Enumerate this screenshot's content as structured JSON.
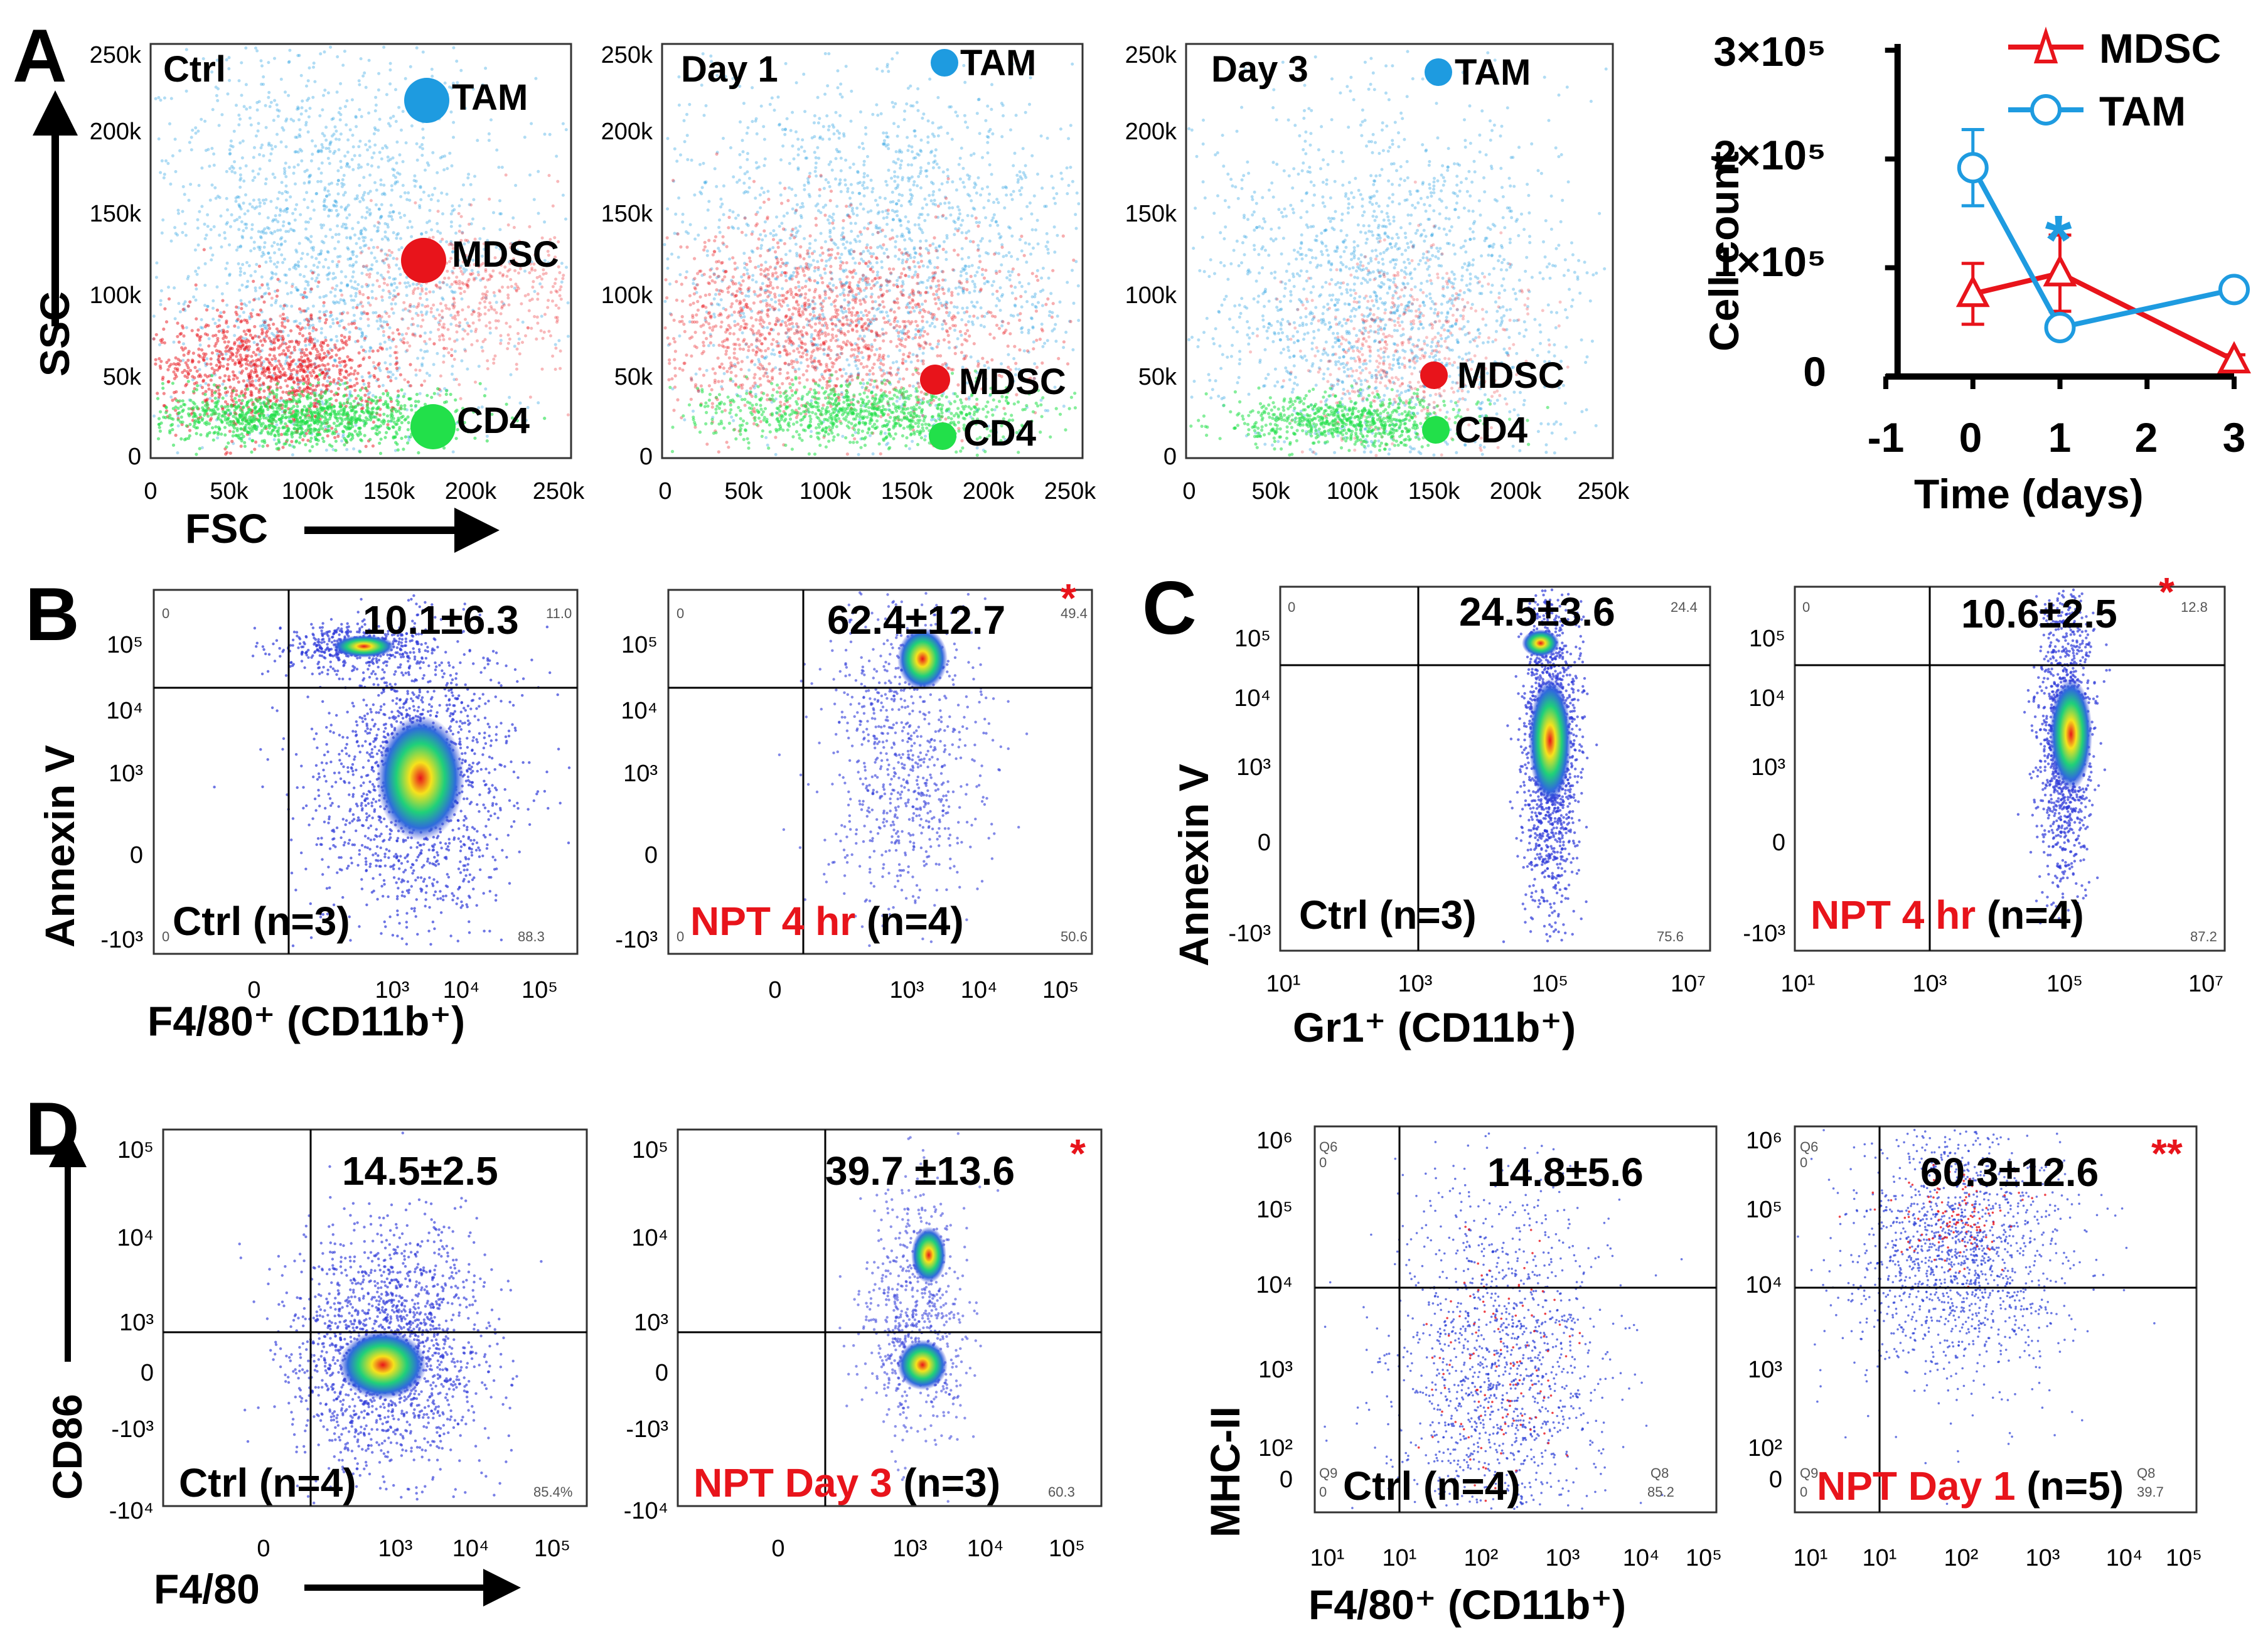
{
  "colors": {
    "mdsc": "#e8141b",
    "tam": "#1e9be0",
    "cd4": "#22e04a",
    "accent_red": "#e8141b"
  },
  "panels": [
    {
      "letter": "A"
    },
    {
      "letter": "B"
    },
    {
      "letter": "C"
    },
    {
      "letter": "D"
    }
  ],
  "panelA": {
    "x_title": "FSC",
    "y_title": "SSC",
    "x_ticks": [
      "0",
      "50k",
      "100k",
      "150k",
      "200k",
      "250k"
    ],
    "y_ticks": [
      "250k",
      "200k",
      "150k",
      "100k",
      "50k",
      "0"
    ],
    "plots": [
      {
        "title": "Ctrl",
        "gates": [
          "TAM",
          "MDSC",
          "CD4"
        ]
      },
      {
        "title": "Day 1",
        "gates": [
          "TAM",
          "MDSC",
          "CD4"
        ]
      },
      {
        "title": "Day 3",
        "gates": [
          "TAM",
          "MDSC",
          "CD4"
        ]
      }
    ]
  },
  "chart_data": {
    "type": "line",
    "title": "",
    "xlabel": "Time (days)",
    "ylabel": "Cell count",
    "xlim": [
      -1,
      3
    ],
    "ylim": [
      0,
      300000
    ],
    "x_ticks": [
      "-1",
      "0",
      "1",
      "2",
      "3"
    ],
    "y_ticks": [
      "0",
      "1×10⁵",
      "2×10⁵",
      "3×10⁵"
    ],
    "legend": "top-right",
    "series": [
      {
        "name": "MDSC",
        "x": [
          0,
          1,
          3
        ],
        "y": [
          76000,
          95000,
          15000
        ],
        "err": [
          28000,
          35000,
          5000
        ]
      },
      {
        "name": "TAM",
        "x": [
          0,
          1,
          3
        ],
        "y": [
          192000,
          45000,
          80000
        ],
        "err": [
          35000,
          6000,
          6000
        ]
      }
    ],
    "annotations": [
      {
        "text": "*",
        "x": 1
      }
    ]
  },
  "panelB": {
    "y_title": "Annexin V",
    "x_title": "F4/80⁺ (CD11b⁺)",
    "y_ticks": [
      "10⁵",
      "10⁴",
      "10³",
      "0",
      "-10³"
    ],
    "x_ticks": [
      "0",
      "10³",
      "10⁴",
      "10⁵"
    ],
    "ctrl": {
      "stat": "10.1±6.3",
      "group": "Ctrl",
      "n": "(n=3)",
      "q_upper_right": "11.0",
      "q_lower_right": "88.3",
      "q_upper_left": "0",
      "q_lower_left": "0"
    },
    "treated": {
      "stat": "62.4±12.7",
      "star": "*",
      "group": "NPT 4 hr",
      "n": "(n=4)",
      "q_upper_right": "49.4",
      "q_lower_right": "50.6",
      "q_upper_left": "0",
      "q_lower_left": "0"
    }
  },
  "panelC": {
    "y_title": "Annexin V",
    "x_title": "Gr1⁺ (CD11b⁺)",
    "y_ticks": [
      "10⁵",
      "10⁴",
      "10³",
      "0",
      "-10³"
    ],
    "x_ticks": [
      "10¹",
      "10³",
      "10⁵",
      "10⁷"
    ],
    "ctrl": {
      "stat": "24.5±3.6",
      "group": "Ctrl",
      "n": "(n=3)",
      "q_upper_right": "24.4",
      "q_lower_right": "75.6",
      "q_upper_left": "0"
    },
    "treated": {
      "stat": "10.6±2.5",
      "star": "*",
      "group": "NPT 4 hr",
      "n": "(n=4)",
      "q_upper_right": "12.8",
      "q_lower_right": "87.2",
      "q_upper_left": "0"
    }
  },
  "panelD1": {
    "y_title": "CD86",
    "x_title": "F4/80",
    "y_ticks": [
      "10⁵",
      "10⁴",
      "10³",
      "0",
      "-10³",
      "-10⁴"
    ],
    "x_ticks": [
      "0",
      "10³",
      "10⁴",
      "10⁵"
    ],
    "ctrl": {
      "stat": "14.5±2.5",
      "group": "Ctrl",
      "n": "(n=4)",
      "q_lower_right": "85.4%"
    },
    "treated": {
      "stat": "39.7 ±13.6",
      "star": "*",
      "group": "NPT Day 3",
      "n": "(n=3)",
      "q_lower_right": "60.3"
    }
  },
  "panelD2": {
    "y_title": "MHC-II",
    "x_title": "F4/80⁺ (CD11b⁺)",
    "y_ticks": [
      "10⁶",
      "10⁵",
      "10⁴",
      "10³",
      "10²",
      "0"
    ],
    "x_ticks": [
      "10¹",
      "10¹",
      "10²",
      "10³",
      "10⁴",
      "10⁵"
    ],
    "ctrl": {
      "stat": "14.8±5.6",
      "group": "Ctrl",
      "n": "(n=4)",
      "q_ul_name": "Q6",
      "q_ul_val": "0",
      "q_ll_name": "Q9",
      "q_ll_val": "0",
      "q_lr_name": "Q8",
      "q_lr_val": "85.2"
    },
    "treated": {
      "stat": "60.3±12.6",
      "star": "**",
      "group": "NPT Day 1",
      "n": "(n=5)",
      "q_ul_name": "Q6",
      "q_ul_val": "0",
      "q_ll_name": "Q9",
      "q_ll_val": "0",
      "q_lr_name": "Q8",
      "q_lr_val": "39.7"
    }
  }
}
